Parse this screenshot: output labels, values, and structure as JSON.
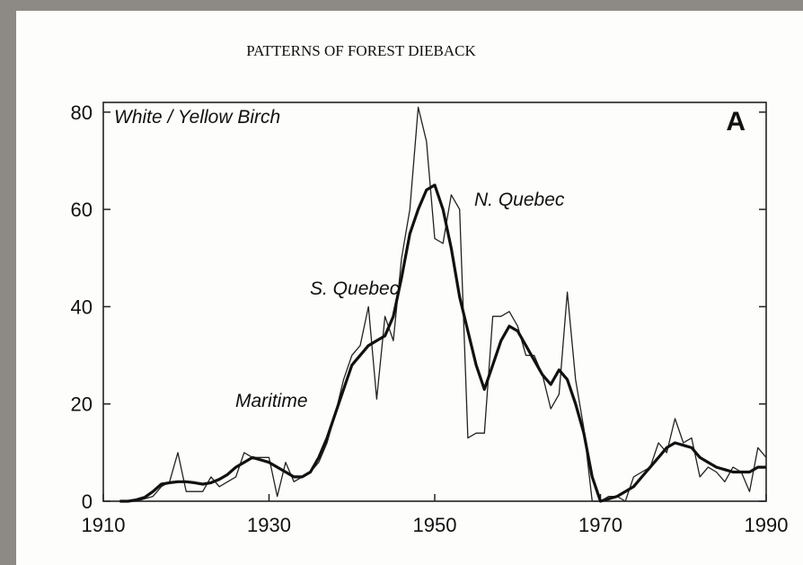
{
  "chart_data": {
    "type": "line",
    "title": "PATTERNS OF FOREST DIEBACK",
    "annotations": [
      "White / Yellow Birch",
      "A",
      "N. Quebec",
      "S. Quebec",
      "Maritime"
    ],
    "x": [
      1912,
      1913,
      1914,
      1915,
      1916,
      1917,
      1918,
      1919,
      1920,
      1921,
      1922,
      1923,
      1924,
      1925,
      1926,
      1927,
      1928,
      1929,
      1930,
      1931,
      1932,
      1933,
      1934,
      1935,
      1936,
      1937,
      1938,
      1939,
      1940,
      1941,
      1942,
      1943,
      1944,
      1945,
      1946,
      1947,
      1948,
      1949,
      1950,
      1951,
      1952,
      1953,
      1954,
      1955,
      1956,
      1957,
      1958,
      1959,
      1960,
      1961,
      1962,
      1963,
      1964,
      1965,
      1966,
      1967,
      1968,
      1969,
      1970,
      1971,
      1972,
      1973,
      1974,
      1975,
      1976,
      1977,
      1978,
      1979,
      1980,
      1981,
      1982,
      1983,
      1984,
      1985,
      1986,
      1987,
      1988,
      1989,
      1990
    ],
    "series": [
      {
        "color": "#222222",
        "width": 1.3,
        "values": [
          0,
          0,
          0,
          0.5,
          1,
          3,
          4,
          10,
          2,
          2,
          2,
          5,
          3,
          4,
          5,
          10,
          9,
          9,
          9,
          1,
          8,
          4,
          5,
          6,
          8,
          12,
          18,
          25,
          30,
          32,
          40,
          21,
          38,
          33,
          50,
          60,
          81,
          74,
          54,
          53,
          63,
          60,
          13,
          14,
          14,
          38,
          38,
          39,
          36,
          30,
          30,
          26,
          19,
          22,
          43,
          25,
          15,
          0,
          0,
          1,
          1,
          0,
          5,
          6,
          7,
          12,
          10,
          17,
          12,
          13,
          5,
          7,
          6,
          4,
          7,
          6,
          2,
          11,
          9
        ]
      },
      {
        "color": "#111111",
        "width": 3.2,
        "values": [
          0,
          0,
          0.3,
          0.8,
          2,
          3.5,
          3.8,
          4,
          4,
          3.8,
          3.5,
          3.8,
          4.5,
          5.5,
          7,
          8,
          9,
          8.5,
          8,
          7,
          6,
          5,
          5,
          6,
          9,
          13,
          18,
          23,
          28,
          30,
          32,
          33,
          34,
          38,
          46,
          55,
          60,
          64,
          65,
          60,
          52,
          42,
          35,
          28,
          23,
          28,
          33,
          36,
          35,
          32,
          29,
          26,
          24,
          27,
          25,
          20,
          14,
          5,
          0,
          0.5,
          1,
          2,
          3,
          5,
          7,
          9,
          11,
          12,
          11.5,
          11,
          9,
          8,
          7,
          6.5,
          6,
          6,
          6,
          7,
          7
        ]
      }
    ],
    "xlim": [
      1910,
      1990
    ],
    "ylim": [
      0,
      82
    ],
    "xticks": [
      1910,
      1930,
      1950,
      1970,
      1990
    ],
    "yticks": [
      0,
      20,
      40,
      60,
      80
    ],
    "grid": false
  }
}
